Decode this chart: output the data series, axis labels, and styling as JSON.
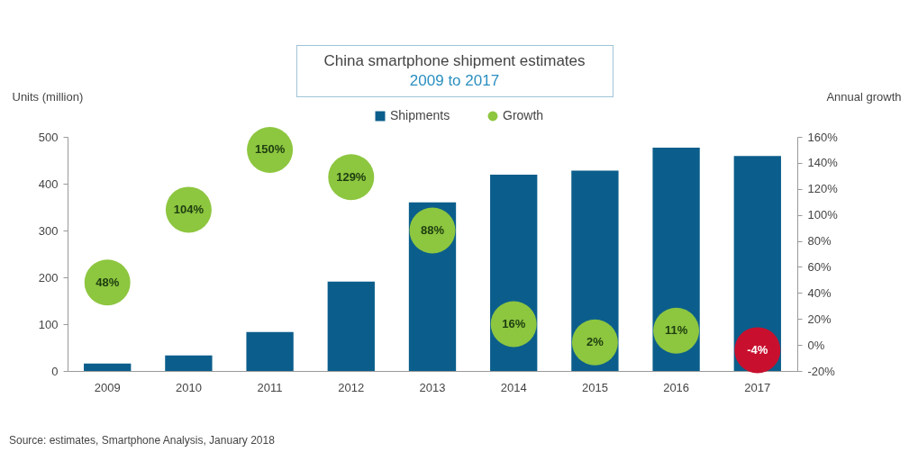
{
  "chart_data": {
    "type": "bar",
    "title": "China smartphone shipment estimates",
    "subtitle": "2009 to 2017",
    "ylabel": "Units (million)",
    "y2label": "Annual growth",
    "categories": [
      "2009",
      "2010",
      "2011",
      "2012",
      "2013",
      "2014",
      "2015",
      "2016",
      "2017"
    ],
    "series": [
      {
        "name": "Shipments",
        "color": "#0b5e8c",
        "values": [
          16,
          33,
          83,
          191,
          360,
          419,
          428,
          477,
          459
        ]
      },
      {
        "name": "Growth",
        "type": "scatter",
        "axis": "y2",
        "color": "#8dc63f",
        "colors": [
          "#8dc63f",
          "#8dc63f",
          "#8dc63f",
          "#8dc63f",
          "#8dc63f",
          "#8dc63f",
          "#8dc63f",
          "#8dc63f",
          "#c8102e"
        ],
        "values": [
          48,
          104,
          150,
          129,
          88,
          16,
          2,
          11,
          -4
        ],
        "value_labels": [
          "48%",
          "104%",
          "150%",
          "129%",
          "88%",
          "16%",
          "2%",
          "11%",
          "-4%"
        ]
      }
    ],
    "ylim": [
      0,
      500
    ],
    "yticks": [
      0,
      100,
      200,
      300,
      400,
      500
    ],
    "y2lim": [
      -20,
      160
    ],
    "y2ticks": [
      {
        "value": -20,
        "label": "-20%"
      },
      {
        "value": 0,
        "label": "0%"
      },
      {
        "value": 20,
        "label": "20%"
      },
      {
        "value": 40,
        "label": "40%"
      },
      {
        "value": 60,
        "label": "60%"
      },
      {
        "value": 80,
        "label": "80%"
      },
      {
        "value": 100,
        "label": "100%"
      },
      {
        "value": 120,
        "label": "120%"
      },
      {
        "value": 140,
        "label": "140%"
      },
      {
        "value": 160,
        "label": "160%"
      }
    ],
    "marker": "circle",
    "grid": false,
    "legend": "top",
    "annotations": [
      "Source: estimates, Smartphone Analysis, January 2018"
    ]
  }
}
